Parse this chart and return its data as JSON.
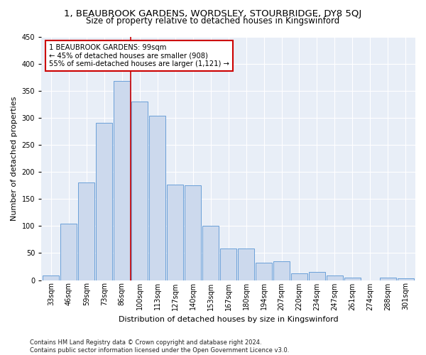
{
  "title": "1, BEAUBROOK GARDENS, WORDSLEY, STOURBRIDGE, DY8 5QJ",
  "subtitle": "Size of property relative to detached houses in Kingswinford",
  "xlabel": "Distribution of detached houses by size in Kingswinford",
  "ylabel": "Number of detached properties",
  "categories": [
    "33sqm",
    "46sqm",
    "59sqm",
    "73sqm",
    "86sqm",
    "100sqm",
    "113sqm",
    "127sqm",
    "140sqm",
    "153sqm",
    "167sqm",
    "180sqm",
    "194sqm",
    "207sqm",
    "220sqm",
    "234sqm",
    "247sqm",
    "261sqm",
    "274sqm",
    "288sqm",
    "301sqm"
  ],
  "values": [
    8,
    104,
    181,
    291,
    368,
    330,
    304,
    176,
    175,
    100,
    58,
    58,
    32,
    35,
    12,
    15,
    8,
    5,
    0,
    4,
    3
  ],
  "bar_color": "#ccd9ed",
  "bar_edge_color": "#6a9fd8",
  "vline_index": 4,
  "annotation_text": "1 BEAUBROOK GARDENS: 99sqm\n← 45% of detached houses are smaller (908)\n55% of semi-detached houses are larger (1,121) →",
  "annotation_box_color": "#ffffff",
  "annotation_box_edge": "#cc0000",
  "vline_color": "#cc0000",
  "footer": "Contains HM Land Registry data © Crown copyright and database right 2024.\nContains public sector information licensed under the Open Government Licence v3.0.",
  "ylim": [
    0,
    450
  ],
  "yticks": [
    0,
    50,
    100,
    150,
    200,
    250,
    300,
    350,
    400,
    450
  ],
  "background_color": "#e8eef7",
  "grid_color": "#ffffff",
  "title_fontsize": 9.5,
  "subtitle_fontsize": 8.5,
  "axis_fontsize": 8,
  "tick_fontsize": 7,
  "footer_fontsize": 6
}
